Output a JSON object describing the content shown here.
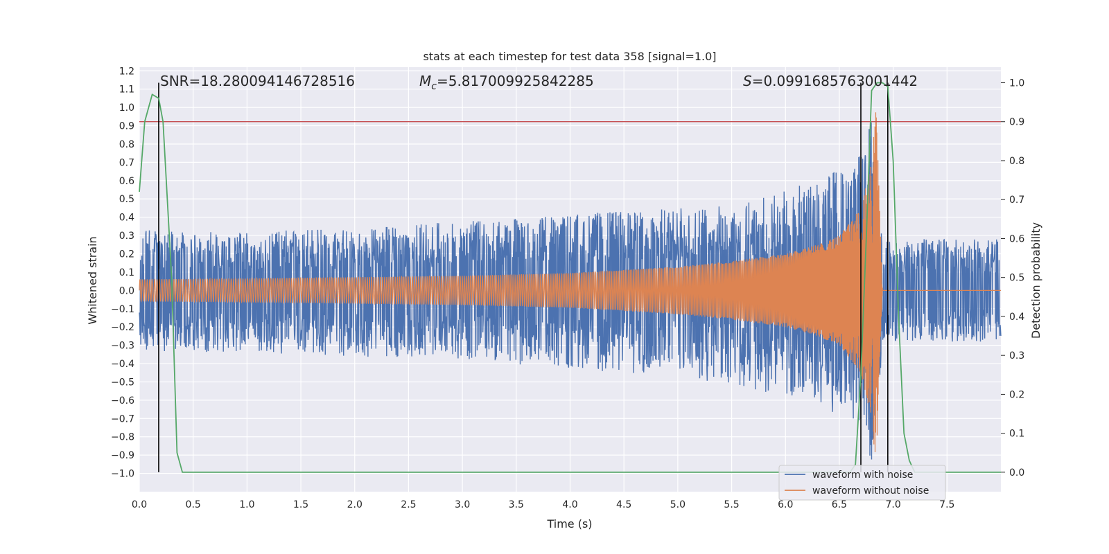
{
  "chart_data": {
    "type": "line",
    "title": "stats at each timestep for test data 358 [signal=1.0]",
    "xlabel": "Time (s)",
    "ylabel": "Whitened strain",
    "ylabel_right": "Detection probability",
    "xlim": [
      0.0,
      8.0
    ],
    "ylim": [
      -1.1,
      1.22
    ],
    "ylim_right": [
      -0.05,
      1.04
    ],
    "xticks": [
      "0.0",
      "0.5",
      "1.0",
      "1.5",
      "2.0",
      "2.5",
      "3.0",
      "3.5",
      "4.0",
      "4.5",
      "5.0",
      "5.5",
      "6.0",
      "6.5",
      "7.0",
      "7.5"
    ],
    "yticks": [
      "1.2",
      "1.1",
      "1.0",
      "0.9",
      "0.8",
      "0.7",
      "0.6",
      "0.5",
      "0.4",
      "0.3",
      "0.2",
      "0.1",
      "0.0",
      "−0.1",
      "−0.2",
      "−0.3",
      "−0.4",
      "−0.5",
      "−0.6",
      "−0.7",
      "−0.8",
      "−0.9",
      "−1.0"
    ],
    "yticks_right": [
      "1.0",
      "0.9",
      "0.8",
      "0.7",
      "0.6",
      "0.5",
      "0.4",
      "0.3",
      "0.2",
      "0.1",
      "0.0"
    ],
    "annotations": {
      "snr": "SNR=18.280094146728516",
      "mc_symbol": "M",
      "mc_sub": "c",
      "mc_value": "=5.817009925842285",
      "s_symbol": "S",
      "s_value": "=0.0991685763001442"
    },
    "threshold": {
      "value": 0.9,
      "color": "#c44e52"
    },
    "vlines": [
      0.18,
      6.7,
      6.95
    ],
    "series": [
      {
        "name": "waveform with noise",
        "color": "#4c72b0",
        "envelope_x": [
          0.0,
          1.0,
          2.0,
          3.0,
          4.0,
          5.0,
          5.5,
          6.0,
          6.3,
          6.5,
          6.7,
          6.8,
          6.86,
          6.9,
          7.0,
          8.0
        ],
        "envelope_upper": [
          0.33,
          0.32,
          0.34,
          0.38,
          0.42,
          0.45,
          0.47,
          0.55,
          0.6,
          0.68,
          0.75,
          0.95,
          0.6,
          0.3,
          0.28,
          0.28
        ],
        "envelope_lower": [
          -0.33,
          -0.34,
          -0.36,
          -0.38,
          -0.43,
          -0.47,
          -0.52,
          -0.58,
          -0.65,
          -0.68,
          -0.72,
          -0.95,
          -0.6,
          -0.3,
          -0.28,
          -0.28
        ]
      },
      {
        "name": "waveform without noise",
        "color": "#dd8452",
        "envelope_x": [
          0.0,
          1.0,
          2.0,
          3.0,
          4.0,
          5.0,
          5.5,
          6.0,
          6.3,
          6.5,
          6.7,
          6.8,
          6.84,
          6.86,
          6.9,
          8.0
        ],
        "envelope_amp": [
          0.06,
          0.065,
          0.072,
          0.08,
          0.095,
          0.13,
          0.16,
          0.2,
          0.25,
          0.3,
          0.45,
          0.7,
          1.0,
          0.7,
          0.0,
          0.0
        ]
      },
      {
        "name": "detection probability",
        "color": "#55a868",
        "axis": "right",
        "x": [
          0.0,
          0.05,
          0.12,
          0.18,
          0.22,
          0.3,
          0.35,
          0.4,
          0.5,
          6.5,
          6.6,
          6.65,
          6.7,
          6.75,
          6.8,
          6.85,
          6.9,
          6.95,
          7.0,
          7.05,
          7.1,
          7.15,
          7.2,
          8.0
        ],
        "y": [
          0.72,
          0.9,
          0.97,
          0.96,
          0.9,
          0.5,
          0.05,
          0.0,
          0.0,
          0.0,
          0.0,
          0.02,
          0.25,
          0.6,
          0.98,
          1.0,
          1.0,
          0.99,
          0.8,
          0.4,
          0.1,
          0.03,
          0.0,
          0.0
        ]
      }
    ],
    "legend": {
      "position": "lower-right",
      "entries": [
        {
          "label": "waveform with noise",
          "color": "#4c72b0"
        },
        {
          "label": "waveform without noise",
          "color": "#dd8452"
        }
      ]
    }
  }
}
